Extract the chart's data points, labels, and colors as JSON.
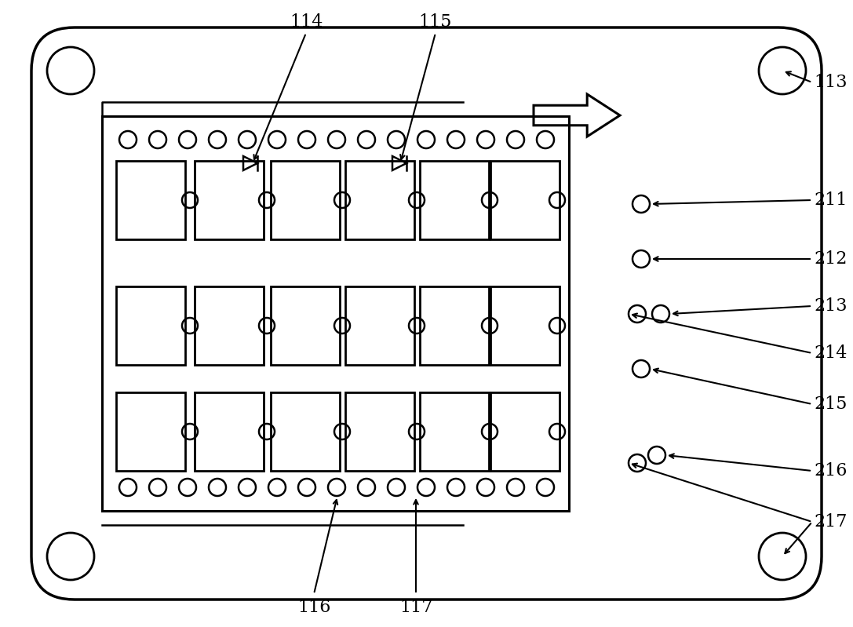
{
  "bg_color": "#ffffff",
  "line_color": "#000000",
  "figsize": [
    10.87,
    7.99
  ],
  "dpi": 100
}
